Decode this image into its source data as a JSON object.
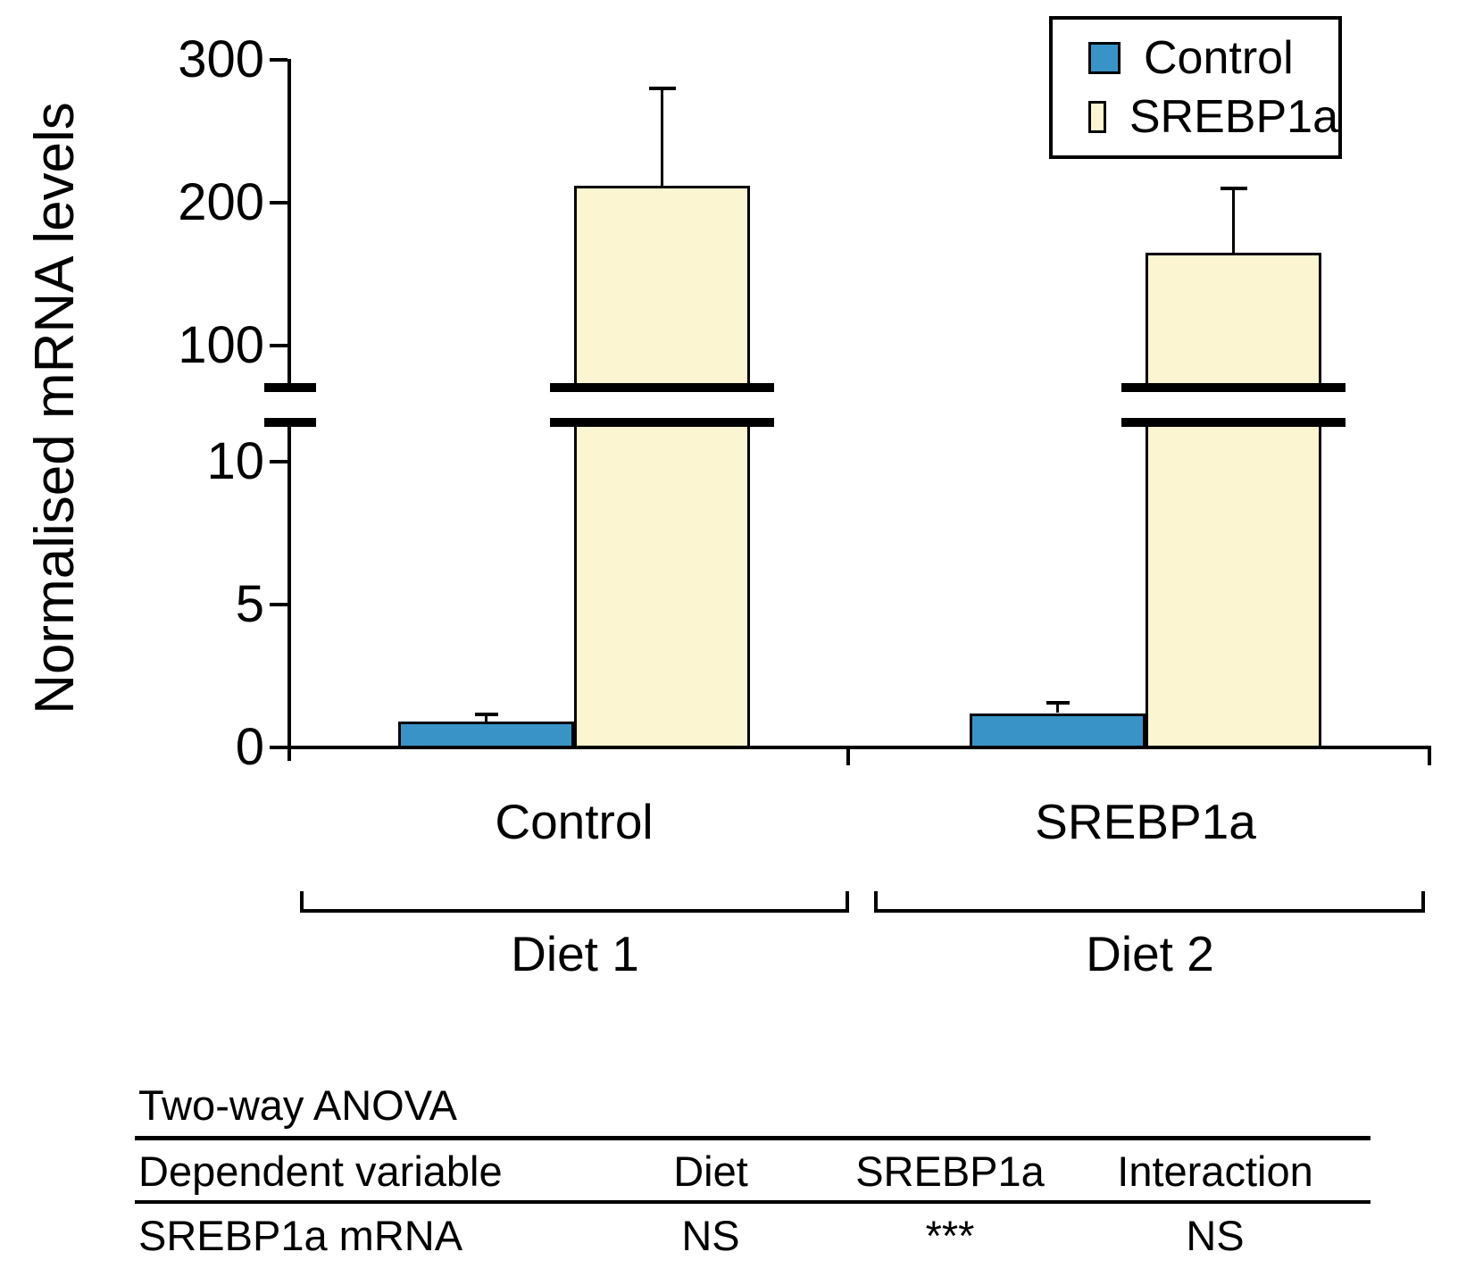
{
  "figure": {
    "ylabel": "Normalised mRNA levels"
  },
  "chart_data": {
    "type": "bar",
    "ylabel": "Normalised mRNA levels",
    "categories": [
      "Diet 1",
      "Diet 2"
    ],
    "category_sublabels": [
      "Control",
      "SREBP1a"
    ],
    "series": [
      {
        "name": "Control",
        "color": "#3A93C7",
        "values": [
          0.9,
          1.2
        ],
        "errors_plus": [
          0.25,
          0.35
        ]
      },
      {
        "name": "SREBP1a",
        "color": "#FBF5D2",
        "values": [
          212,
          165
        ],
        "errors_plus": [
          68,
          45
        ]
      }
    ],
    "y_axis": {
      "broken": true,
      "lower_ticks": [
        0,
        5,
        10
      ],
      "upper_ticks": [
        100,
        200,
        300
      ],
      "lower_range": [
        0,
        11.4
      ],
      "upper_range": [
        71,
        300
      ]
    },
    "grid": false,
    "legend_position": "top-right"
  },
  "legend": {
    "items": [
      {
        "label": "Control",
        "color": "#3A93C7"
      },
      {
        "label": "SREBP1a",
        "color": "#FBF5D2"
      }
    ]
  },
  "table": {
    "title": "Two-way ANOVA",
    "headers": [
      "Dependent variable",
      "Diet",
      "SREBP1a",
      "Interaction"
    ],
    "rows": [
      [
        "SREBP1a mRNA",
        "NS",
        "***",
        "NS"
      ]
    ]
  }
}
